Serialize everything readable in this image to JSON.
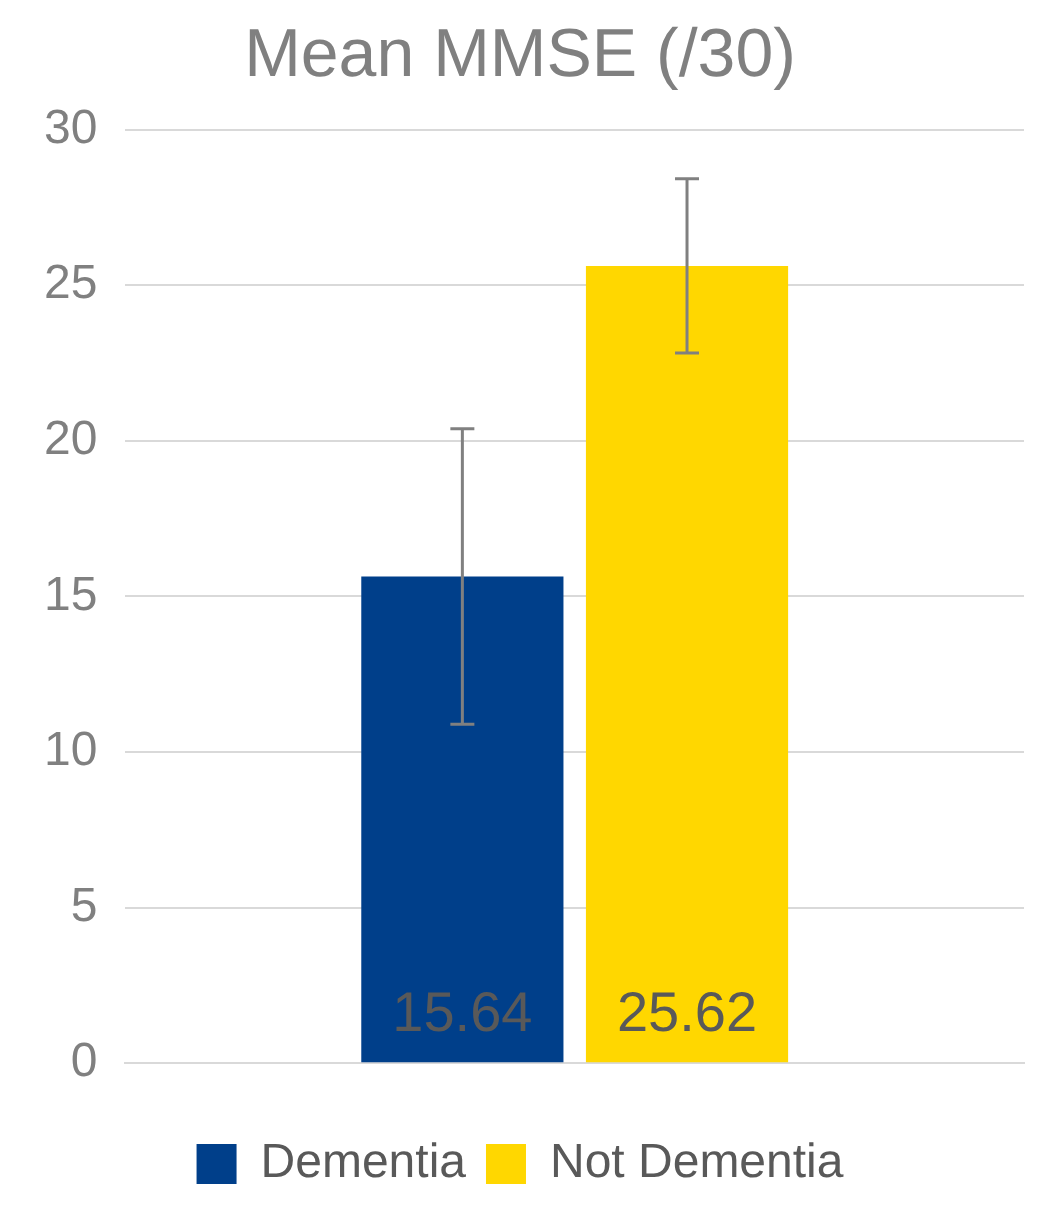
{
  "chart_data": {
    "type": "bar",
    "title": "Mean MMSE (/30)",
    "categories": [
      null
    ],
    "series": [
      {
        "name": "Dementia",
        "color": "#003f8a",
        "values": [
          15.64
        ],
        "errors": [
          4.75
        ]
      },
      {
        "name": "Not Dementia",
        "color": "#ffd700",
        "values": [
          25.62
        ],
        "errors": [
          2.8
        ]
      }
    ],
    "ylim": [
      0,
      30
    ],
    "yticks": [
      0,
      5,
      10,
      15,
      20,
      25,
      30
    ],
    "grid": "y",
    "legend": "bottom",
    "data_labels": true
  }
}
